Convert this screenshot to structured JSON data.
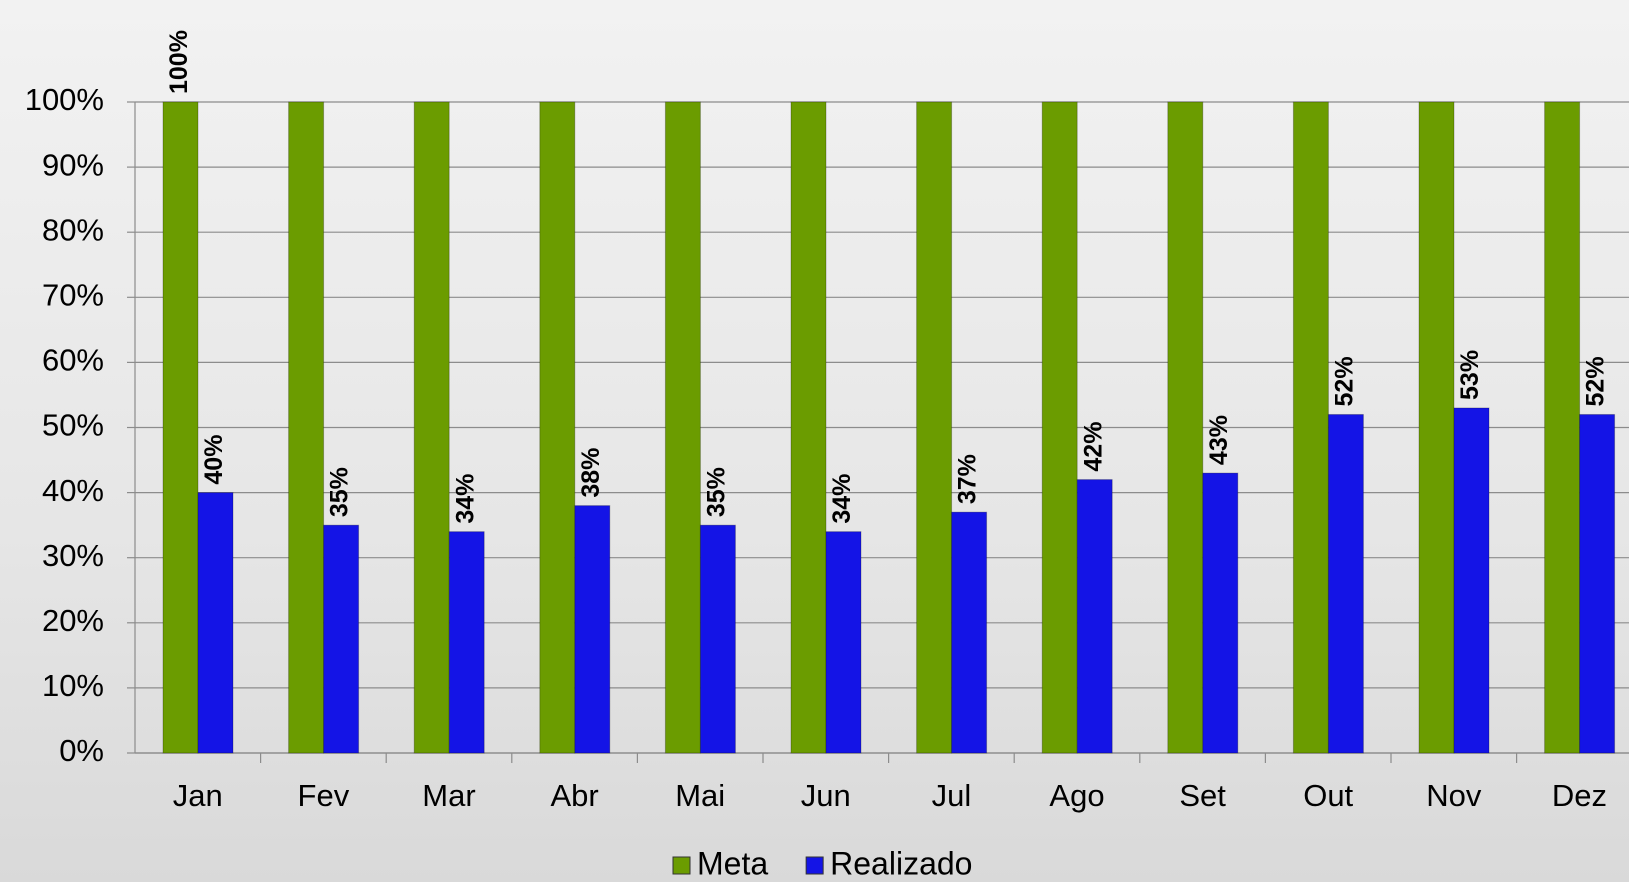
{
  "chart_data": {
    "type": "bar",
    "categories": [
      "Jan",
      "Fev",
      "Mar",
      "Abr",
      "Mai",
      "Jun",
      "Jul",
      "Ago",
      "Set",
      "Out",
      "Nov",
      "Dez"
    ],
    "series": [
      {
        "name": "Meta",
        "color": "#6b9c00",
        "values": [
          100,
          100,
          100,
          100,
          100,
          100,
          100,
          100,
          100,
          100,
          100,
          100
        ],
        "value_labels": [
          "100%",
          null,
          null,
          null,
          null,
          null,
          null,
          null,
          null,
          null,
          null,
          null
        ]
      },
      {
        "name": "Realizado",
        "color": "#1414e6",
        "values": [
          40,
          35,
          34,
          38,
          35,
          34,
          37,
          42,
          43,
          52,
          53,
          52
        ],
        "value_labels": [
          "40%",
          "35%",
          "34%",
          "38%",
          "35%",
          "34%",
          "37%",
          "42%",
          "43%",
          "52%",
          "53%",
          "52%"
        ]
      }
    ],
    "ylim": [
      0,
      100
    ],
    "yticks": [
      {
        "value": 0,
        "label": "0%"
      },
      {
        "value": 10,
        "label": "10%"
      },
      {
        "value": 20,
        "label": "20%"
      },
      {
        "value": 30,
        "label": "30%"
      },
      {
        "value": 40,
        "label": "40%"
      },
      {
        "value": 50,
        "label": "50%"
      },
      {
        "value": 60,
        "label": "60%"
      },
      {
        "value": 70,
        "label": "70%"
      },
      {
        "value": 80,
        "label": "80%"
      },
      {
        "value": 90,
        "label": "90%"
      },
      {
        "value": 100,
        "label": "100%"
      }
    ],
    "grid": true,
    "legend": "bottom"
  }
}
